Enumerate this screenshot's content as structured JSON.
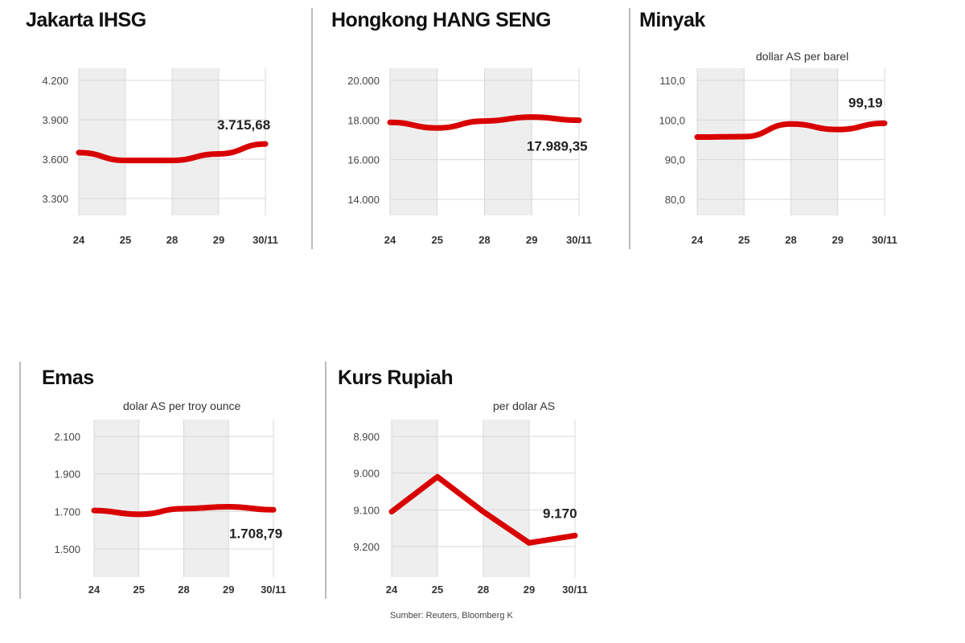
{
  "colors": {
    "line": "#d90000",
    "band": "#eeeeee",
    "grid": "#d8d8d8",
    "separator": "#bbbbbb"
  },
  "source": "Sumber: Reuters, Bloomberg  K",
  "chart_data": [
    {
      "type": "line",
      "title": "Jakarta IHSG",
      "unit": "",
      "categories": [
        "24",
        "25",
        "28",
        "29",
        "30/11"
      ],
      "values": [
        3650,
        3590,
        3590,
        3640,
        3715.68
      ],
      "last_label": "3.715,68",
      "yticks": [
        "4.200",
        "3.900",
        "3.600",
        "3.300"
      ],
      "ytick_values": [
        4200,
        3900,
        3600,
        3300
      ],
      "grid": true
    },
    {
      "type": "line",
      "title": "Hongkong HANG SENG",
      "unit": "",
      "categories": [
        "24",
        "25",
        "28",
        "29",
        "30/11"
      ],
      "values": [
        17880,
        17600,
        17950,
        18150,
        17989.35
      ],
      "last_label": "17.989,35",
      "yticks": [
        "20.000",
        "18.000",
        "16.000",
        "14.000"
      ],
      "ytick_values": [
        20000,
        18000,
        16000,
        14000
      ],
      "grid": true
    },
    {
      "type": "line",
      "title": "Minyak",
      "unit": "dollar AS per barel",
      "categories": [
        "24",
        "25",
        "28",
        "29",
        "30/11"
      ],
      "values": [
        95.7,
        95.8,
        99.0,
        97.6,
        99.19
      ],
      "last_label": "99,19",
      "yticks": [
        "110,0",
        "100,0",
        "90,0",
        "80,0"
      ],
      "ytick_values": [
        110,
        100,
        90,
        80
      ],
      "grid": true
    },
    {
      "type": "line",
      "title": "Emas",
      "unit": "dolar AS per troy ounce",
      "categories": [
        "24",
        "25",
        "28",
        "29",
        "30/11"
      ],
      "values": [
        1705,
        1685,
        1715,
        1725,
        1708.79
      ],
      "last_label": "1.708,79",
      "yticks": [
        "2.100",
        "1.900",
        "1.700",
        "1.500"
      ],
      "ytick_values": [
        2100,
        1900,
        1700,
        1500
      ],
      "grid": true
    },
    {
      "type": "line",
      "title": "Kurs Rupiah",
      "unit": "per dolar AS",
      "categories": [
        "24",
        "25",
        "28",
        "29",
        "30/11"
      ],
      "values": [
        9105,
        9010,
        9105,
        9190,
        9170
      ],
      "last_label": "9.170",
      "yticks": [
        "8.900",
        "9.000",
        "9.100",
        "9.200"
      ],
      "ytick_values": [
        8900,
        9000,
        9100,
        9200
      ],
      "y_inverted": true,
      "grid": true
    }
  ]
}
